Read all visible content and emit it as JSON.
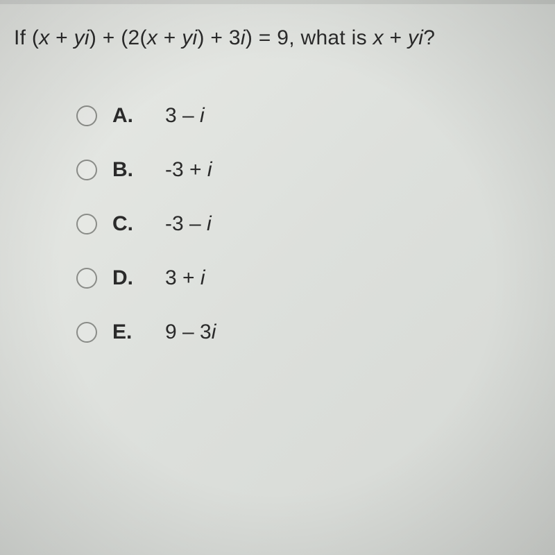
{
  "question": {
    "parts": [
      {
        "t": "If (",
        "i": false
      },
      {
        "t": "x",
        "i": true
      },
      {
        "t": " + ",
        "i": false
      },
      {
        "t": "yi",
        "i": true
      },
      {
        "t": ") + (2(",
        "i": false
      },
      {
        "t": "x",
        "i": true
      },
      {
        "t": " + ",
        "i": false
      },
      {
        "t": "yi",
        "i": true
      },
      {
        "t": ") + 3",
        "i": false
      },
      {
        "t": "i",
        "i": true
      },
      {
        "t": ") = 9, what is ",
        "i": false
      },
      {
        "t": "x",
        "i": true
      },
      {
        "t": " + ",
        "i": false
      },
      {
        "t": "yi",
        "i": true
      },
      {
        "t": "?",
        "i": false
      }
    ]
  },
  "options": [
    {
      "letter": "A.",
      "parts": [
        {
          "t": "3 – ",
          "i": false
        },
        {
          "t": "i",
          "i": true
        }
      ]
    },
    {
      "letter": "B.",
      "parts": [
        {
          "t": "-3 + ",
          "i": false
        },
        {
          "t": "i",
          "i": true
        }
      ]
    },
    {
      "letter": "C.",
      "parts": [
        {
          "t": "-3 – ",
          "i": false
        },
        {
          "t": "i",
          "i": true
        }
      ]
    },
    {
      "letter": "D.",
      "parts": [
        {
          "t": "3 + ",
          "i": false
        },
        {
          "t": "i",
          "i": true
        }
      ]
    },
    {
      "letter": "E.",
      "parts": [
        {
          "t": "9 – 3",
          "i": false
        },
        {
          "t": "i",
          "i": true
        }
      ]
    }
  ],
  "style": {
    "font_size_question": 30,
    "font_size_option": 30,
    "radio_border_color": "#8a8c88",
    "text_color": "#2a2a2a",
    "background_gradient": [
      "#e8eae6",
      "#dde0dc",
      "#d5d8d4"
    ]
  }
}
